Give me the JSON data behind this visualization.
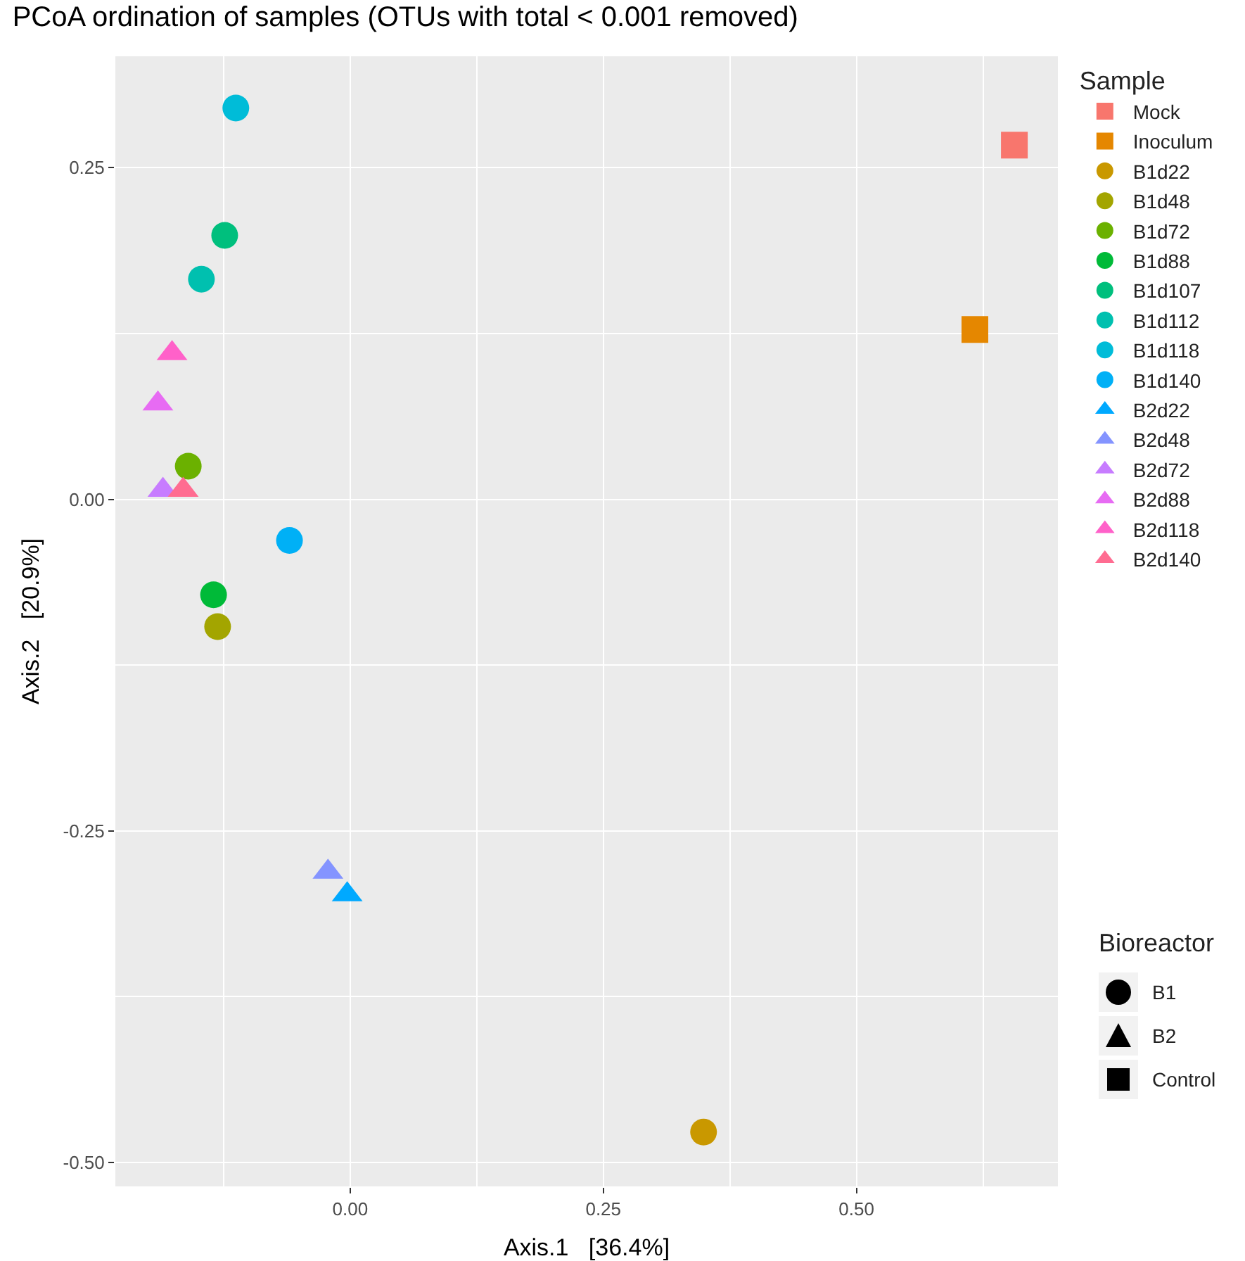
{
  "chart_data": {
    "type": "scatter",
    "title": "PCoA ordination of samples (OTUs with total < 0.001 removed)",
    "xlabel": "Axis.1   [36.4%]",
    "ylabel": "Axis.2   [20.9%]",
    "legend_title": "Sample",
    "legend": "right",
    "grid": true,
    "xlim": [
      -0.232,
      0.699
    ],
    "ylim": [
      -0.518,
      0.334
    ],
    "xticks": [
      {
        "value": 0,
        "label": "0.00"
      },
      0.25,
      {
        "value": 0.5,
        "label": "0.50"
      }
    ],
    "yticks": [
      {
        "value": -0.5,
        "label": "-0.50"
      },
      -0.25,
      {
        "value": 0,
        "label": "0.00"
      },
      0.25
    ],
    "annotations": [
      "Bioreactor",
      "B1",
      "B2",
      "Control"
    ],
    "series": [
      {
        "name": "Mock",
        "color": "#f8766d",
        "marker": "square",
        "x": [
          0.656
        ],
        "values": [
          0.267
        ]
      },
      {
        "name": "Inoculum",
        "color": "#e58700",
        "marker": "square",
        "x": [
          0.617
        ],
        "values": [
          0.128
        ]
      },
      {
        "name": "B1d22",
        "color": "#c99800",
        "marker": "circle",
        "x": [
          0.349
        ],
        "values": [
          -0.477
        ]
      },
      {
        "name": "B1d48",
        "color": "#a3a500",
        "marker": "circle",
        "x": [
          -0.131
        ],
        "values": [
          -0.096
        ]
      },
      {
        "name": "B1d72",
        "color": "#6bb100",
        "marker": "circle",
        "x": [
          -0.16
        ],
        "values": [
          0.025
        ]
      },
      {
        "name": "B1d88",
        "color": "#00ba38",
        "marker": "circle",
        "x": [
          -0.135
        ],
        "values": [
          -0.072
        ]
      },
      {
        "name": "B1d107",
        "color": "#00bf7d",
        "marker": "circle",
        "x": [
          -0.124
        ],
        "values": [
          0.199
        ]
      },
      {
        "name": "B1d112",
        "color": "#00c0af",
        "marker": "circle",
        "x": [
          -0.147
        ],
        "values": [
          0.166
        ]
      },
      {
        "name": "B1d118",
        "color": "#00bcd8",
        "marker": "circle",
        "x": [
          -0.113
        ],
        "values": [
          0.295
        ]
      },
      {
        "name": "B1d140",
        "color": "#00b0f6",
        "marker": "circle",
        "x": [
          -0.06
        ],
        "values": [
          -0.031
        ]
      },
      {
        "name": "B2d22",
        "color": "#00a9ff",
        "marker": "triangle",
        "x": [
          -0.003
        ],
        "values": [
          -0.298
        ]
      },
      {
        "name": "B2d48",
        "color": "#8494ff",
        "marker": "triangle",
        "x": [
          -0.022
        ],
        "values": [
          -0.281
        ]
      },
      {
        "name": "B2d72",
        "color": "#c77cff",
        "marker": "triangle",
        "x": [
          -0.185
        ],
        "values": [
          0.007
        ]
      },
      {
        "name": "B2d88",
        "color": "#e76bf3",
        "marker": "triangle",
        "x": [
          -0.19
        ],
        "values": [
          0.072
        ]
      },
      {
        "name": "B2d118",
        "color": "#ff61c9",
        "marker": "triangle",
        "x": [
          -0.176
        ],
        "values": [
          0.11
        ]
      },
      {
        "name": "B2d140",
        "color": "#ff6c91",
        "marker": "triangle",
        "x": [
          -0.165
        ],
        "values": [
          0.007
        ]
      }
    ]
  }
}
